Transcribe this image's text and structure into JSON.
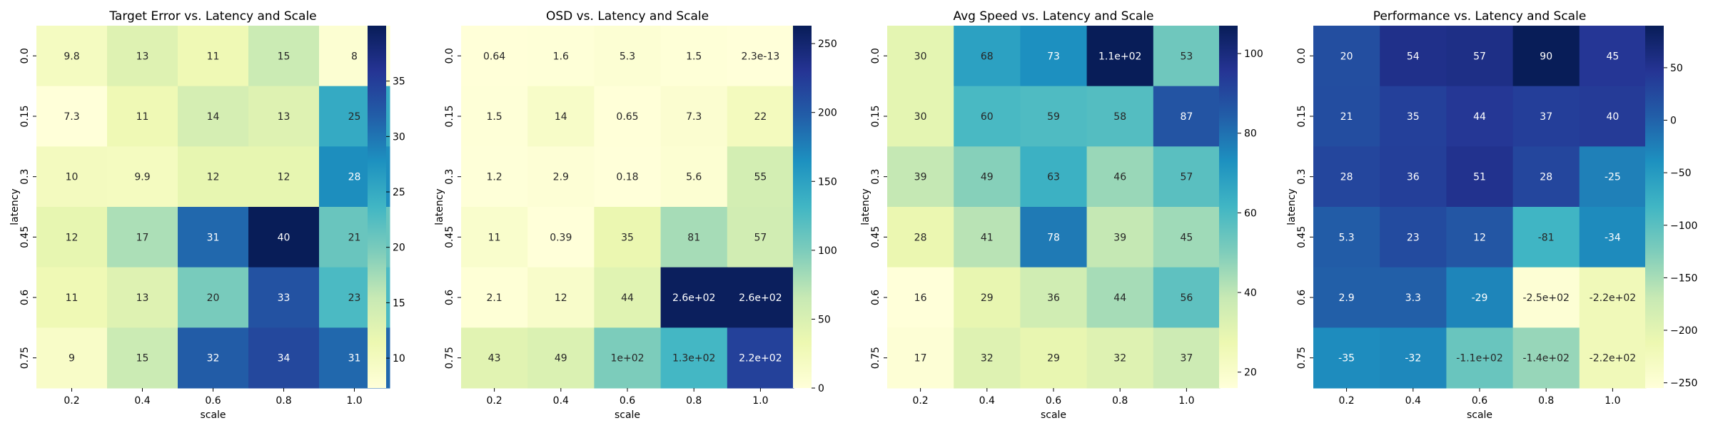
{
  "figure": {
    "background": "#ffffff"
  },
  "colormap": {
    "name": "YlGnBu",
    "stops": [
      "#ffffd9",
      "#edf8b1",
      "#c7e9b4",
      "#7fcdbb",
      "#41b6c4",
      "#1d91c0",
      "#225ea8",
      "#253494",
      "#081d58"
    ]
  },
  "chart_data": [
    {
      "type": "heatmap",
      "title": "Target Error vs. Latency and Scale",
      "xlabel": "scale",
      "ylabel": "latency",
      "x_ticks": [
        "0.2",
        "0.4",
        "0.6",
        "0.8",
        "1.0"
      ],
      "y_ticks": [
        "0.0",
        "0.15",
        "0.3",
        "0.45",
        "0.6",
        "0.75"
      ],
      "values": [
        [
          9.8,
          13,
          11,
          15,
          8
        ],
        [
          7.3,
          11,
          14,
          13,
          25
        ],
        [
          10,
          9.9,
          12,
          12,
          28
        ],
        [
          12,
          17,
          31,
          40,
          21
        ],
        [
          11,
          13,
          20,
          33,
          23
        ],
        [
          9,
          15,
          32,
          34,
          31
        ]
      ],
      "annotations": [
        [
          "9.8",
          "13",
          "11",
          "15",
          "8"
        ],
        [
          "7.3",
          "11",
          "14",
          "13",
          "25"
        ],
        [
          "10",
          "9.9",
          "12",
          "12",
          "28"
        ],
        [
          "12",
          "17",
          "31",
          "40",
          "21"
        ],
        [
          "11",
          "13",
          "20",
          "33",
          "23"
        ],
        [
          "9",
          "15",
          "32",
          "34",
          "31"
        ]
      ],
      "vmin": 7.3,
      "vmax": 40,
      "colorbar_ticks": [
        10,
        15,
        20,
        25,
        30,
        35
      ],
      "colorbar_labels": [
        "10",
        "15",
        "20",
        "25",
        "30",
        "35"
      ]
    },
    {
      "type": "heatmap",
      "title": "OSD vs. Latency and Scale",
      "xlabel": "scale",
      "ylabel": "latency",
      "x_ticks": [
        "0.2",
        "0.4",
        "0.6",
        "0.8",
        "1.0"
      ],
      "y_ticks": [
        "0.0",
        "0.15",
        "0.3",
        "0.45",
        "0.6",
        "0.75"
      ],
      "values": [
        [
          0.64,
          1.6,
          5.3,
          1.5,
          2.3e-13
        ],
        [
          1.5,
          14,
          0.65,
          7.3,
          22
        ],
        [
          1.2,
          2.9,
          0.18,
          5.6,
          55
        ],
        [
          11,
          0.39,
          35,
          81,
          57
        ],
        [
          2.1,
          12,
          44,
          260,
          260
        ],
        [
          43,
          49,
          100,
          130,
          220
        ]
      ],
      "annotations": [
        [
          "0.64",
          "1.6",
          "5.3",
          "1.5",
          "2.3e-13"
        ],
        [
          "1.5",
          "14",
          "0.65",
          "7.3",
          "22"
        ],
        [
          "1.2",
          "2.9",
          "0.18",
          "5.6",
          "55"
        ],
        [
          "11",
          "0.39",
          "35",
          "81",
          "57"
        ],
        [
          "2.1",
          "12",
          "44",
          "2.6e+02",
          "2.6e+02"
        ],
        [
          "43",
          "49",
          "1e+02",
          "1.3e+02",
          "2.2e+02"
        ]
      ],
      "vmin": 0,
      "vmax": 263,
      "colorbar_ticks": [
        0,
        50,
        100,
        150,
        200,
        250
      ],
      "colorbar_labels": [
        "0",
        "50",
        "100",
        "150",
        "200",
        "250"
      ]
    },
    {
      "type": "heatmap",
      "title": "Avg Speed vs. Latency and Scale",
      "xlabel": "scale",
      "ylabel": "latency",
      "x_ticks": [
        "0.2",
        "0.4",
        "0.6",
        "0.8",
        "1.0"
      ],
      "y_ticks": [
        "0.0",
        "0.15",
        "0.3",
        "0.45",
        "0.6",
        "0.75"
      ],
      "values": [
        [
          30,
          68,
          73,
          107,
          53
        ],
        [
          30,
          60,
          59,
          58,
          87
        ],
        [
          39,
          49,
          63,
          46,
          57
        ],
        [
          28,
          41,
          78,
          39,
          45
        ],
        [
          16,
          29,
          36,
          44,
          56
        ],
        [
          17,
          32,
          29,
          32,
          37
        ]
      ],
      "annotations": [
        [
          "30",
          "68",
          "73",
          "1.1e+02",
          "53"
        ],
        [
          "30",
          "60",
          "59",
          "58",
          "87"
        ],
        [
          "39",
          "49",
          "63",
          "46",
          "57"
        ],
        [
          "28",
          "41",
          "78",
          "39",
          "45"
        ],
        [
          "16",
          "29",
          "36",
          "44",
          "56"
        ],
        [
          "17",
          "32",
          "29",
          "32",
          "37"
        ]
      ],
      "vmin": 16,
      "vmax": 107,
      "colorbar_ticks": [
        20,
        40,
        60,
        80,
        100
      ],
      "colorbar_labels": [
        "20",
        "40",
        "60",
        "80",
        "100"
      ]
    },
    {
      "type": "heatmap",
      "title": "Performance vs. Latency and Scale",
      "xlabel": "scale",
      "ylabel": "latency",
      "x_ticks": [
        "0.2",
        "0.4",
        "0.6",
        "0.8",
        "1.0"
      ],
      "y_ticks": [
        "0.0",
        "0.15",
        "0.3",
        "0.45",
        "0.6",
        "0.75"
      ],
      "values": [
        [
          20,
          54,
          57,
          90,
          45
        ],
        [
          21,
          35,
          44,
          37,
          40
        ],
        [
          28,
          36,
          51,
          28,
          -25
        ],
        [
          5.3,
          23,
          12,
          -81,
          -34
        ],
        [
          2.9,
          3.3,
          -29,
          -250,
          -220
        ],
        [
          -35,
          -32,
          -110,
          -140,
          -220
        ]
      ],
      "annotations": [
        [
          "20",
          "54",
          "57",
          "90",
          "45"
        ],
        [
          "21",
          "35",
          "44",
          "37",
          "40"
        ],
        [
          "28",
          "36",
          "51",
          "28",
          "-25"
        ],
        [
          "5.3",
          "23",
          "12",
          "-81",
          "-34"
        ],
        [
          "2.9",
          "3.3",
          "-29",
          "-2.5e+02",
          "-2.2e+02"
        ],
        [
          "-35",
          "-32",
          "-1.1e+02",
          "-1.4e+02",
          "-2.2e+02"
        ]
      ],
      "vmin": -255,
      "vmax": 90,
      "colorbar_ticks": [
        -250,
        -200,
        -150,
        -100,
        -50,
        0,
        50
      ],
      "colorbar_labels": [
        "−250",
        "−200",
        "−150",
        "−100",
        "−50",
        "0",
        "50"
      ]
    }
  ]
}
